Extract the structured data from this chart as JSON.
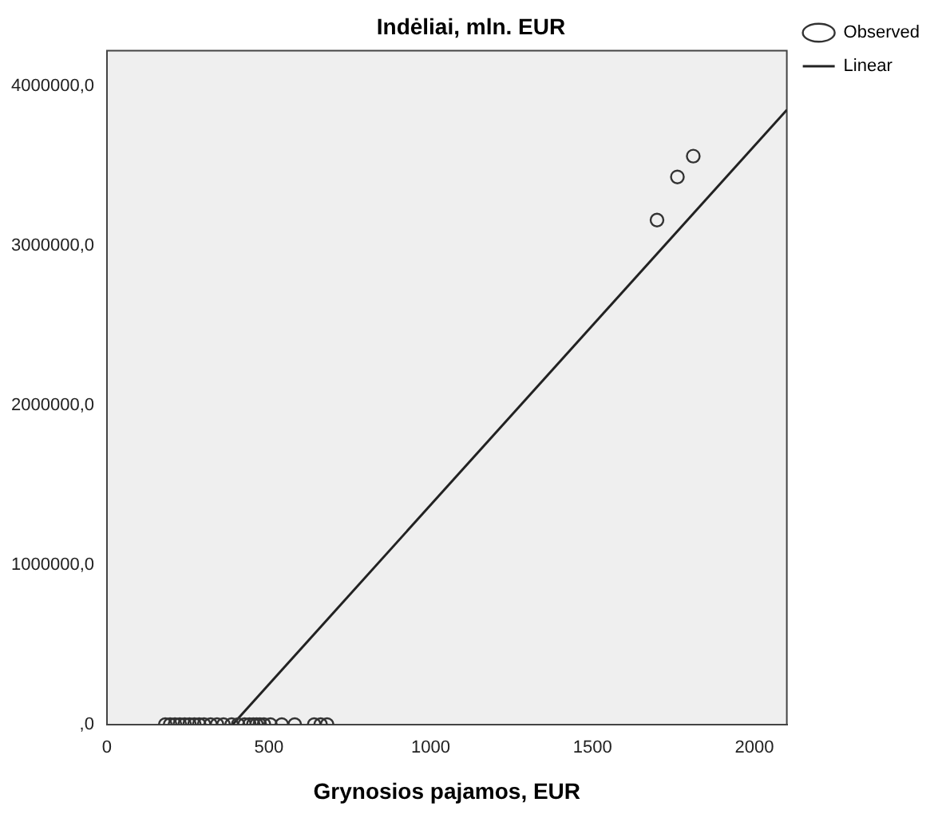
{
  "chart_data": {
    "type": "scatter",
    "title": "Indėliai, mln. EUR",
    "xlabel": "Grynosios pajamos, EUR",
    "xlim": [
      0,
      2100
    ],
    "xticks": [
      0,
      500,
      1000,
      1500,
      2000
    ],
    "ylim": [
      0,
      4220000
    ],
    "yticks": [
      {
        "value": 0,
        "label": ",0"
      },
      {
        "value": 1000000,
        "label": "1000000,0"
      },
      {
        "value": 2000000,
        "label": "2000000,0"
      },
      {
        "value": 3000000,
        "label": "3000000,0"
      },
      {
        "value": 4000000,
        "label": "4000000,0"
      }
    ],
    "grid": false,
    "legend": "top right",
    "marker": "circle",
    "series": [
      {
        "name": "Observed",
        "type": "scatter",
        "color": "#333333",
        "x": [
          180,
          195,
          210,
          225,
          240,
          255,
          270,
          285,
          300,
          320,
          340,
          360,
          385,
          405,
          425,
          440,
          452,
          462,
          472,
          485,
          505,
          540,
          580,
          640,
          660,
          680,
          1699,
          1762,
          1811
        ],
        "values": [
          0,
          0,
          0,
          0,
          0,
          0,
          0,
          0,
          0,
          0,
          0,
          0,
          0,
          0,
          0,
          0,
          0,
          0,
          0,
          0,
          0,
          0,
          0,
          0,
          0,
          0,
          3160000,
          3430000,
          3560000
        ]
      },
      {
        "name": "Linear",
        "type": "line",
        "color": "#222222",
        "line_style": "solid",
        "marker": "none",
        "x": [
          388,
          2100
        ],
        "values": [
          0,
          3850000
        ]
      }
    ]
  }
}
